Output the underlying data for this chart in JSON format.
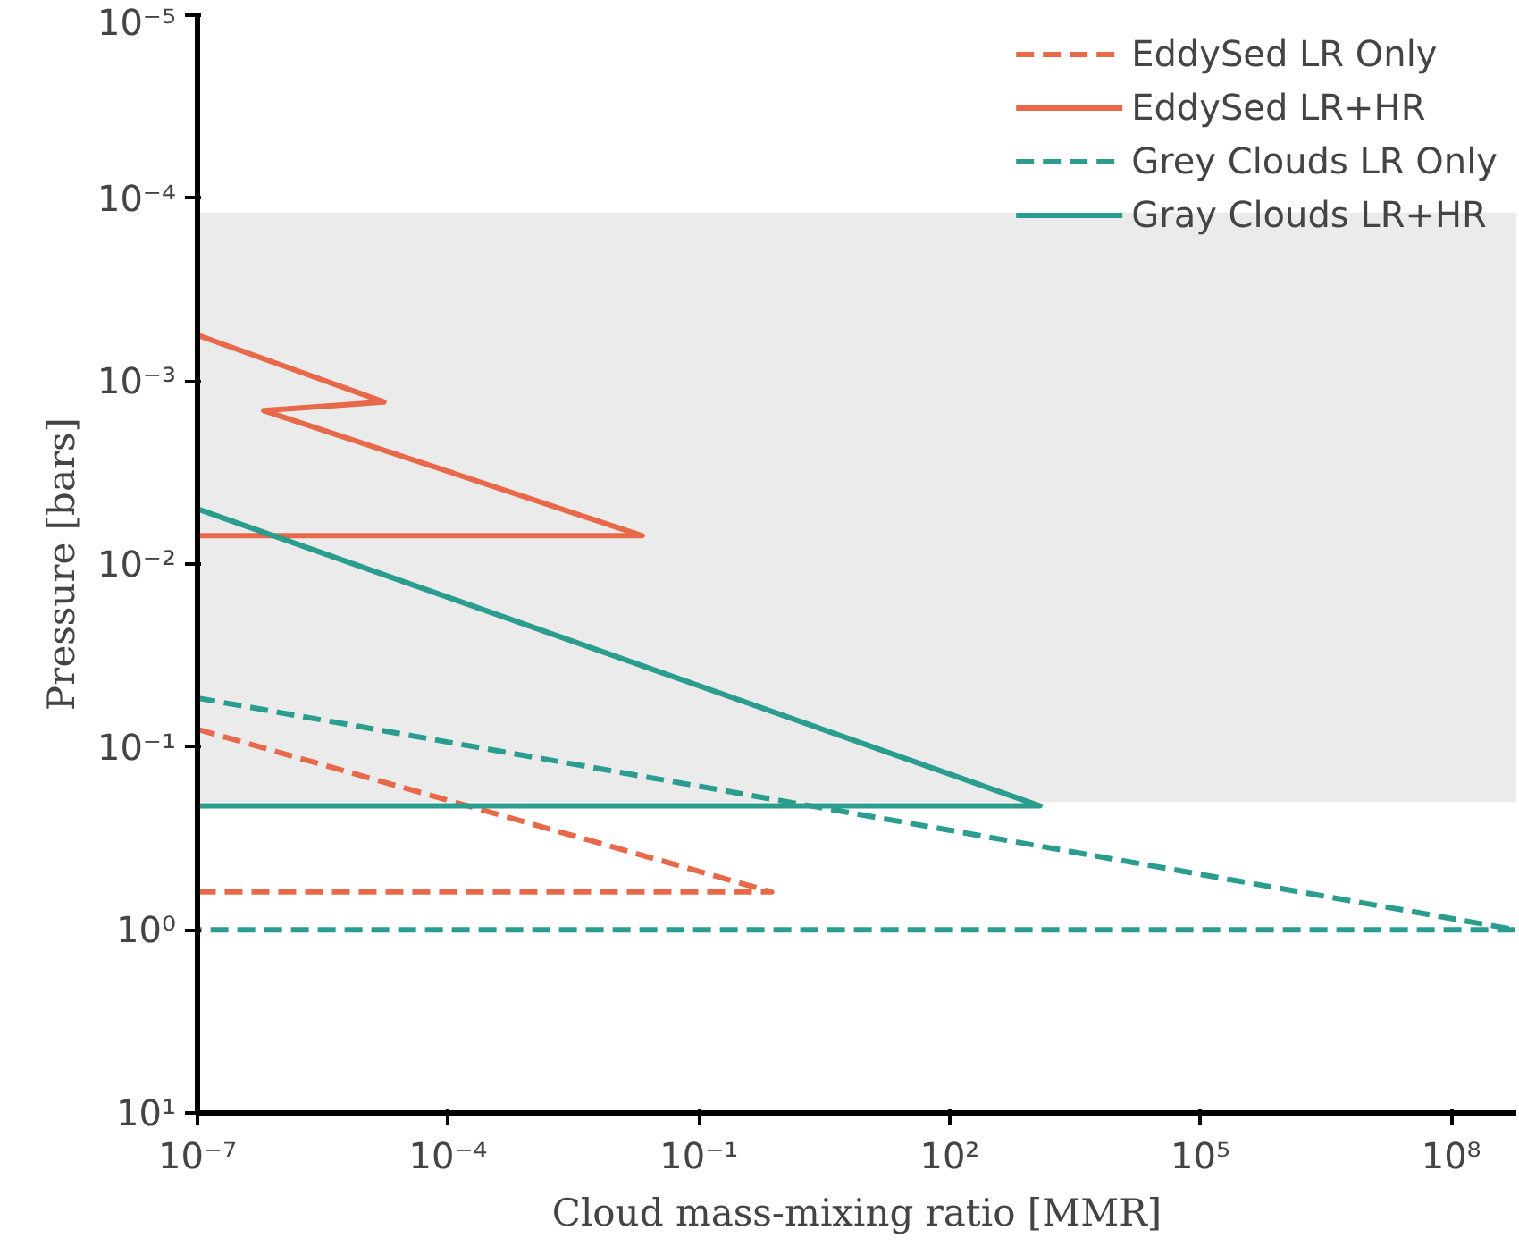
{
  "chart_data": {
    "type": "line",
    "xlabel": "Cloud mass-mixing ratio [MMR]",
    "ylabel": "Pressure [bars]",
    "log": "xy",
    "grid": false,
    "legend": "top right",
    "xlim": [
      1e-07,
      600000000.0
    ],
    "ylim": [
      10,
      1e-05
    ],
    "xticks": [
      {
        "value": 1e-07,
        "label": "10⁻⁷"
      },
      {
        "value": 0.0001,
        "label": "10⁻⁴"
      },
      {
        "value": 0.1,
        "label": "10⁻¹"
      },
      {
        "value": 100,
        "label": "10²"
      },
      {
        "value": 100000.0,
        "label": "10⁵"
      },
      {
        "value": 100000000.0,
        "label": "10⁸"
      }
    ],
    "yticks": [
      {
        "value": 10,
        "label": "10¹"
      },
      {
        "value": 1,
        "label": "10⁰"
      },
      {
        "value": 0.1,
        "label": "10⁻¹"
      },
      {
        "value": 0.01,
        "label": "10⁻²"
      },
      {
        "value": 0.001,
        "label": "10⁻³"
      },
      {
        "value": 0.0001,
        "label": "10⁻⁴"
      },
      {
        "value": 1e-05,
        "label": "10⁻⁵"
      }
    ],
    "bands": [
      {
        "axis": "y",
        "from": 0.00012,
        "to": 0.2,
        "color": "#ebebeb"
      }
    ],
    "series": [
      {
        "name": "EddySed LR Only",
        "color": "#e8694a",
        "line_style": "dashed",
        "x": [
          1e-07,
          0.74,
          1e-07
        ],
        "values": [
          0.08,
          0.62,
          0.62
        ]
      },
      {
        "name": "EddySed LR+HR",
        "color": "#e8694a",
        "line_style": "solid",
        "x": [
          1e-07,
          1.7e-05,
          6.2e-07,
          4.9e-05,
          0.021,
          1e-07
        ],
        "values": [
          0.00056,
          0.0013,
          0.00145,
          0.0028,
          0.007,
          0.007
        ]
      },
      {
        "name": "Grey Clouds LR Only",
        "color": "#2a9d8f",
        "line_style": "dashed",
        "x": [
          1e-07,
          600000000.0,
          1e-07
        ],
        "values": [
          0.054,
          1.0,
          1.0
        ]
      },
      {
        "name": "Gray Clouds LR+HR",
        "color": "#2a9d8f",
        "line_style": "solid",
        "x": [
          1e-07,
          1200,
          1e-07
        ],
        "values": [
          0.005,
          0.21,
          0.21
        ]
      }
    ]
  }
}
